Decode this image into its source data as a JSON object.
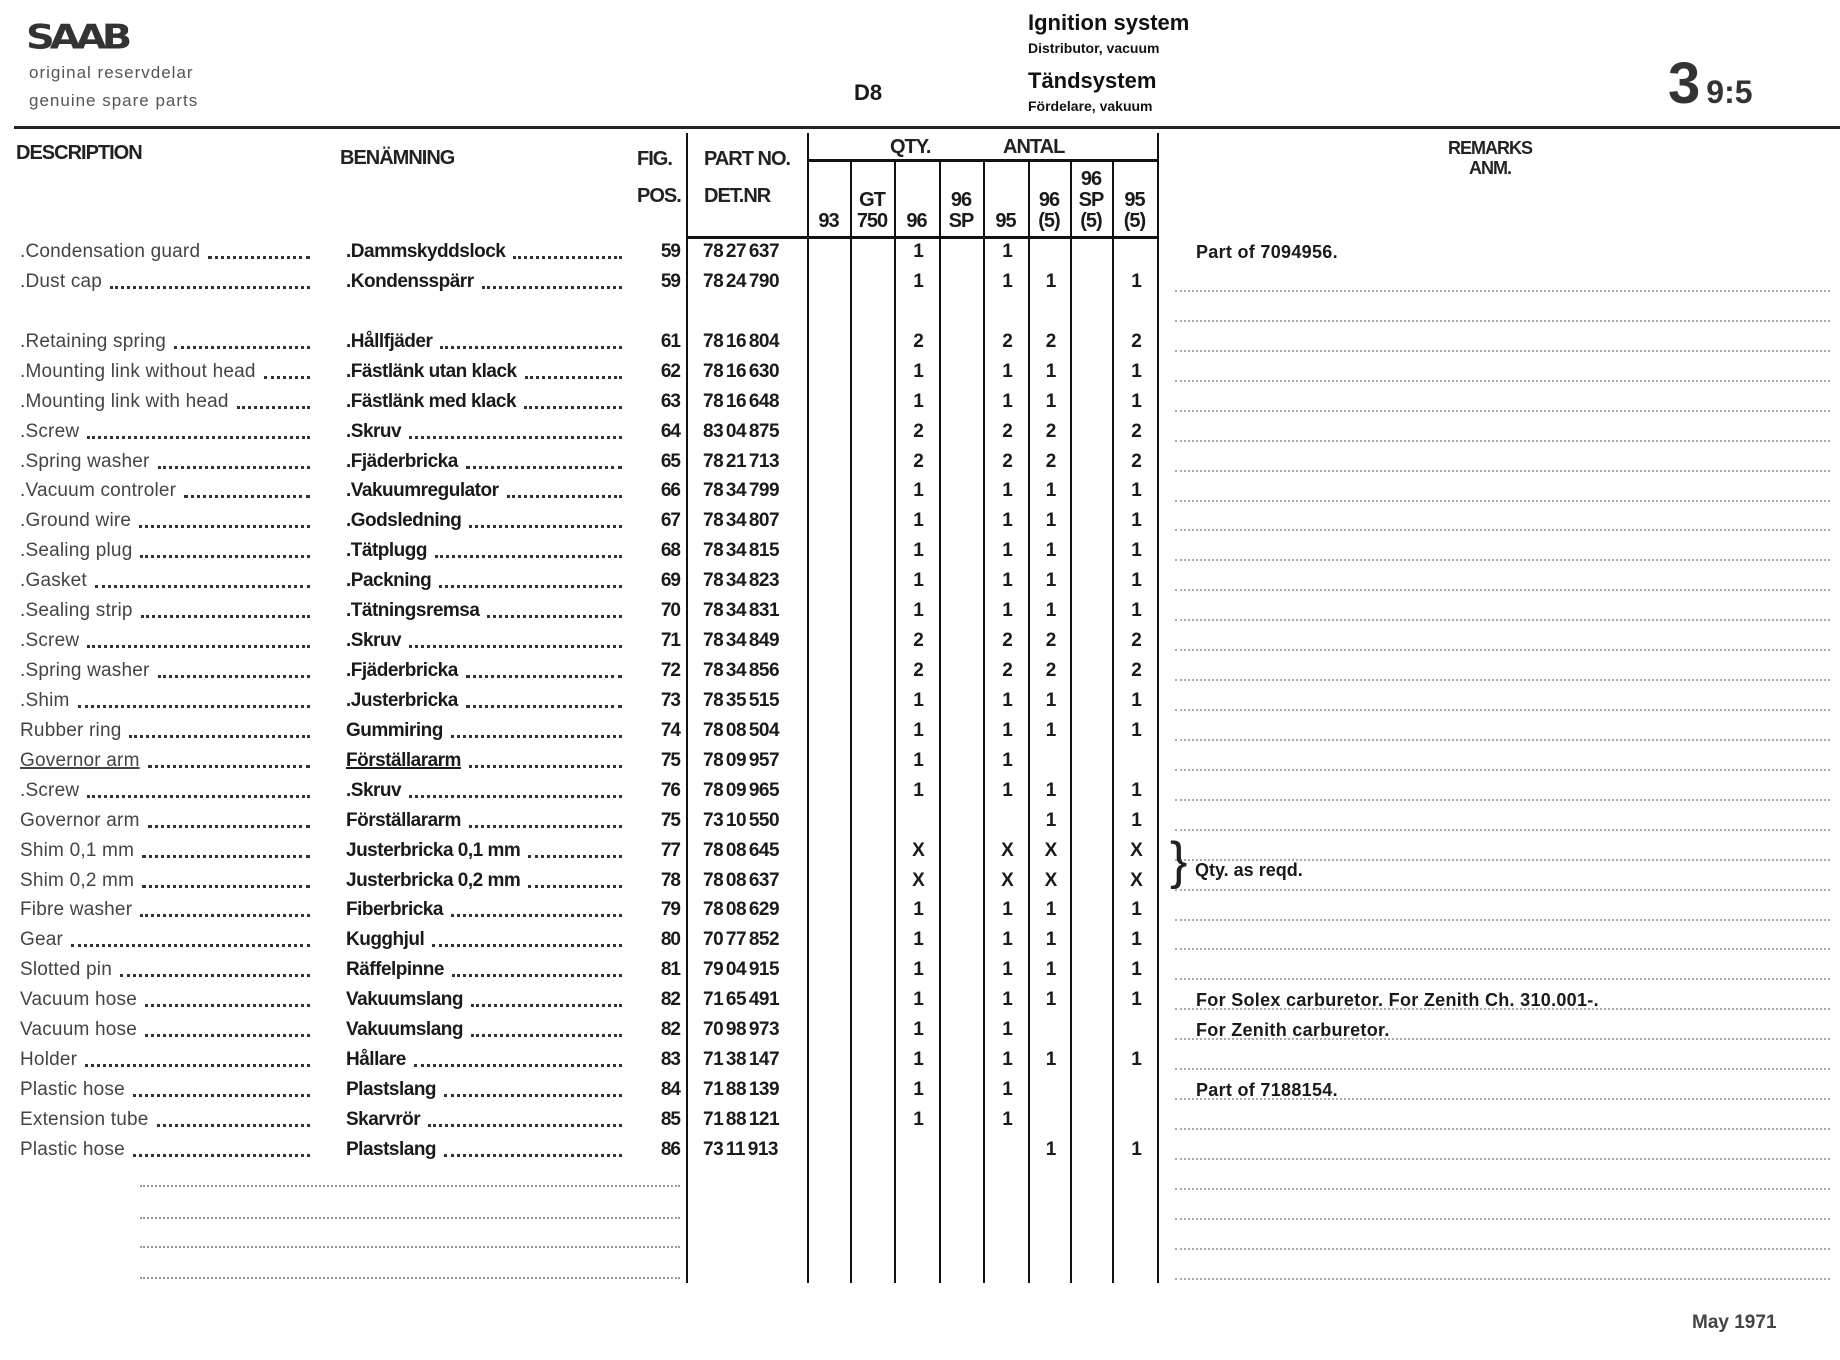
{
  "header": {
    "logo": "SAAB",
    "tagline_sv": "original reservdelar",
    "tagline_en": "genuine spare parts",
    "code": "D8",
    "title_en": "Ignition system",
    "subtitle_en": "Distributor, vacuum",
    "title_sv": "Tändsystem",
    "subtitle_sv": "Fördelare, vakuum",
    "section_major": "3",
    "section_minor": "9:5"
  },
  "columns": {
    "description": "DESCRIPTION",
    "benamning": "BENÄMNING",
    "fig": "FIG.",
    "pos": "POS.",
    "part_no": "PART NO.",
    "det_nr": "DET.NR",
    "qty": "QTY.",
    "antal": "ANTAL",
    "remarks": "REMARKS",
    "anm": "ANM.",
    "models": [
      "93",
      "GT\n750",
      "96",
      "96\nSP",
      "95",
      "96\n(5)",
      "96\nSP\n(5)",
      "95\n(5)"
    ]
  },
  "rows": [
    {
      "desc": ".Condensation guard",
      "ben": ".Dammskyddslock",
      "pos": "59",
      "part": "78 27 637",
      "qty": [
        "",
        "",
        "1",
        "",
        "1",
        "",
        "",
        ""
      ],
      "remark": "Part of 7094956."
    },
    {
      "desc": ".Dust cap",
      "ben": ".Kondensspärr",
      "pos": "59",
      "part": "78 24 790",
      "qty": [
        "",
        "",
        "1",
        "",
        "1",
        "1",
        "",
        "1"
      ],
      "remark": ""
    },
    {
      "desc": ".Retaining spring",
      "ben": ".Hållfjäder",
      "pos": "61",
      "part": "78 16 804",
      "qty": [
        "",
        "",
        "2",
        "",
        "2",
        "2",
        "",
        "2"
      ],
      "remark": ""
    },
    {
      "desc": ".Mounting link without head",
      "ben": ".Fästlänk utan klack",
      "pos": "62",
      "part": "78 16 630",
      "qty": [
        "",
        "",
        "1",
        "",
        "1",
        "1",
        "",
        "1"
      ],
      "remark": ""
    },
    {
      "desc": ".Mounting link with head",
      "ben": ".Fästlänk med klack",
      "pos": "63",
      "part": "78 16 648",
      "qty": [
        "",
        "",
        "1",
        "",
        "1",
        "1",
        "",
        "1"
      ],
      "remark": ""
    },
    {
      "desc": ".Screw",
      "ben": ".Skruv",
      "pos": "64",
      "part": "83 04 875",
      "qty": [
        "",
        "",
        "2",
        "",
        "2",
        "2",
        "",
        "2"
      ],
      "remark": ""
    },
    {
      "desc": ".Spring washer",
      "ben": ".Fjäderbricka",
      "pos": "65",
      "part": "78 21 713",
      "qty": [
        "",
        "",
        "2",
        "",
        "2",
        "2",
        "",
        "2"
      ],
      "remark": ""
    },
    {
      "desc": ".Vacuum controler",
      "ben": ".Vakuumregulator",
      "pos": "66",
      "part": "78 34 799",
      "qty": [
        "",
        "",
        "1",
        "",
        "1",
        "1",
        "",
        "1"
      ],
      "remark": ""
    },
    {
      "desc": ".Ground wire",
      "ben": ".Godsledning",
      "pos": "67",
      "part": "78 34 807",
      "qty": [
        "",
        "",
        "1",
        "",
        "1",
        "1",
        "",
        "1"
      ],
      "remark": ""
    },
    {
      "desc": ".Sealing plug",
      "ben": ".Tätplugg",
      "pos": "68",
      "part": "78 34 815",
      "qty": [
        "",
        "",
        "1",
        "",
        "1",
        "1",
        "",
        "1"
      ],
      "remark": ""
    },
    {
      "desc": ".Gasket",
      "ben": ".Packning",
      "pos": "69",
      "part": "78 34 823",
      "qty": [
        "",
        "",
        "1",
        "",
        "1",
        "1",
        "",
        "1"
      ],
      "remark": ""
    },
    {
      "desc": ".Sealing strip",
      "ben": ".Tätningsremsa",
      "pos": "70",
      "part": "78 34 831",
      "qty": [
        "",
        "",
        "1",
        "",
        "1",
        "1",
        "",
        "1"
      ],
      "remark": ""
    },
    {
      "desc": ".Screw",
      "ben": ".Skruv",
      "pos": "71",
      "part": "78 34 849",
      "qty": [
        "",
        "",
        "2",
        "",
        "2",
        "2",
        "",
        "2"
      ],
      "remark": ""
    },
    {
      "desc": ".Spring washer",
      "ben": ".Fjäderbricka",
      "pos": "72",
      "part": "78 34 856",
      "qty": [
        "",
        "",
        "2",
        "",
        "2",
        "2",
        "",
        "2"
      ],
      "remark": ""
    },
    {
      "desc": ".Shim",
      "ben": ".Justerbricka",
      "pos": "73",
      "part": "78 35 515",
      "qty": [
        "",
        "",
        "1",
        "",
        "1",
        "1",
        "",
        "1"
      ],
      "remark": ""
    },
    {
      "desc": "Rubber ring",
      "ben": "Gummiring",
      "pos": "74",
      "part": "78 08 504",
      "qty": [
        "",
        "",
        "1",
        "",
        "1",
        "1",
        "",
        "1"
      ],
      "remark": ""
    },
    {
      "desc": "Governor arm",
      "ben": "Förställararm",
      "pos": "75",
      "part": "78 09 957",
      "qty": [
        "",
        "",
        "1",
        "",
        "1",
        "",
        "",
        ""
      ],
      "remark": "",
      "underlined": true
    },
    {
      "desc": ".Screw",
      "ben": ".Skruv",
      "pos": "76",
      "part": "78 09 965",
      "qty": [
        "",
        "",
        "1",
        "",
        "1",
        "1",
        "",
        "1"
      ],
      "remark": ""
    },
    {
      "desc": "Governor arm",
      "ben": "Förställararm",
      "pos": "75",
      "part": "73 10 550",
      "qty": [
        "",
        "",
        "",
        "",
        "",
        "1",
        "",
        "1"
      ],
      "remark": ""
    },
    {
      "desc": "Shim 0,1 mm",
      "ben": "Justerbricka 0,1 mm",
      "pos": "77",
      "part": "78 08 645",
      "qty": [
        "",
        "",
        "X",
        "",
        "X",
        "X",
        "",
        "X"
      ],
      "remark": ""
    },
    {
      "desc": "Shim 0,2 mm",
      "ben": "Justerbricka 0,2 mm",
      "pos": "78",
      "part": "78 08 637",
      "qty": [
        "",
        "",
        "X",
        "",
        "X",
        "X",
        "",
        "X"
      ],
      "remark": ""
    },
    {
      "desc": "Fibre washer",
      "ben": "Fiberbricka",
      "pos": "79",
      "part": "78 08 629",
      "qty": [
        "",
        "",
        "1",
        "",
        "1",
        "1",
        "",
        "1"
      ],
      "remark": ""
    },
    {
      "desc": "Gear",
      "ben": "Kugghjul",
      "pos": "80",
      "part": "70 77 852",
      "qty": [
        "",
        "",
        "1",
        "",
        "1",
        "1",
        "",
        "1"
      ],
      "remark": ""
    },
    {
      "desc": "Slotted pin",
      "ben": "Räffelpinne",
      "pos": "81",
      "part": "79 04 915",
      "qty": [
        "",
        "",
        "1",
        "",
        "1",
        "1",
        "",
        "1"
      ],
      "remark": ""
    },
    {
      "desc": "Vacuum hose",
      "ben": "Vakuumslang",
      "pos": "82",
      "part": "71 65 491",
      "qty": [
        "",
        "",
        "1",
        "",
        "1",
        "1",
        "",
        "1"
      ],
      "remark": "For Solex carburetor. For Zenith Ch. 310.001-."
    },
    {
      "desc": "Vacuum hose",
      "ben": "Vakuumslang",
      "pos": "82",
      "part": "70 98 973",
      "qty": [
        "",
        "",
        "1",
        "",
        "1",
        "",
        "",
        ""
      ],
      "remark": "For Zenith carburetor."
    },
    {
      "desc": "Holder",
      "ben": "Hållare",
      "pos": "83",
      "part": "71 38 147",
      "qty": [
        "",
        "",
        "1",
        "",
        "1",
        "1",
        "",
        "1"
      ],
      "remark": ""
    },
    {
      "desc": "Plastic hose",
      "ben": "Plastslang",
      "pos": "84",
      "part": "71 88 139",
      "qty": [
        "",
        "",
        "1",
        "",
        "1",
        "",
        "",
        ""
      ],
      "remark": "Part of 7188154."
    },
    {
      "desc": "Extension tube",
      "ben": "Skarvrör",
      "pos": "85",
      "part": "71 88 121",
      "qty": [
        "",
        "",
        "1",
        "",
        "1",
        "",
        "",
        ""
      ],
      "remark": ""
    },
    {
      "desc": "Plastic hose",
      "ben": "Plastslang",
      "pos": "86",
      "part": "73 11 913",
      "qty": [
        "",
        "",
        "",
        "",
        "",
        "1",
        "",
        "1"
      ],
      "remark": ""
    }
  ],
  "qty_note": "Qty. as reqd.",
  "footer": {
    "date": "May 1971"
  }
}
